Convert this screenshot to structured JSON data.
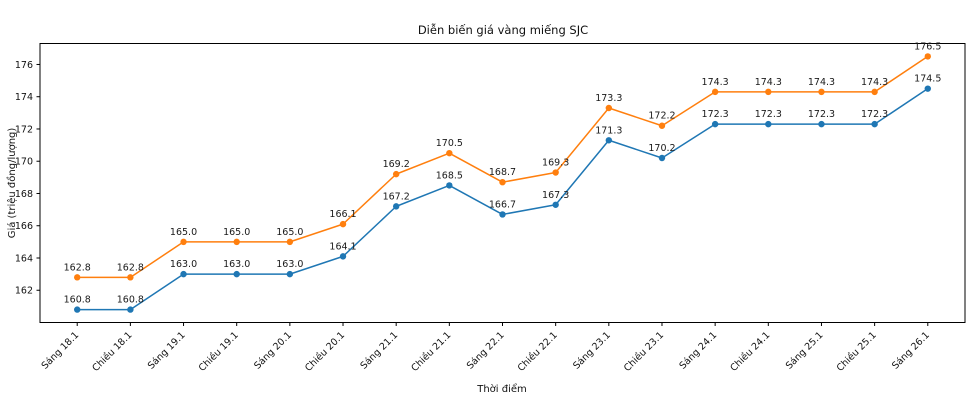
{
  "figure": {
    "background_color": "#ffffff",
    "spine_color": "#000000"
  },
  "chart_data": {
    "type": "line",
    "title": "Diễn biến giá vàng miếng SJC",
    "xlabel": "Thời điểm",
    "ylabel": "Giá (triệu đồng/lượng)",
    "categories": [
      "Sáng 18.1",
      "Chiều 18.1",
      "Sáng 19.1",
      "Chiều 19.1",
      "Sáng 20.1",
      "Chiều 20.1",
      "Sáng 21.1",
      "Chiều 21.1",
      "Sáng 22.1",
      "Chiều 22.1",
      "Sáng 23.1",
      "Chiều 23.1",
      "Sáng 24.1",
      "Chiều 24.1",
      "Sáng 25.1",
      "Chiều 25.1",
      "Sáng 26.1"
    ],
    "series": [
      {
        "name": "blue",
        "color": "#1f77b4",
        "values": [
          160.8,
          160.8,
          163.0,
          163.0,
          163.0,
          164.1,
          167.2,
          168.5,
          166.7,
          167.3,
          171.3,
          170.2,
          172.3,
          172.3,
          172.3,
          172.3,
          174.5
        ]
      },
      {
        "name": "orange",
        "color": "#ff7f0e",
        "values": [
          162.8,
          162.8,
          165.0,
          165.0,
          165.0,
          166.1,
          169.2,
          170.5,
          168.7,
          169.3,
          173.3,
          172.2,
          174.3,
          174.3,
          174.3,
          174.3,
          176.5
        ]
      }
    ],
    "yticks": [
      162,
      164,
      166,
      168,
      170,
      172,
      174,
      176
    ],
    "ylim": [
      160.0,
      177.3
    ],
    "grid": false,
    "legend_position": "none",
    "data_labels": true,
    "x_tick_rotation_deg": 45
  }
}
